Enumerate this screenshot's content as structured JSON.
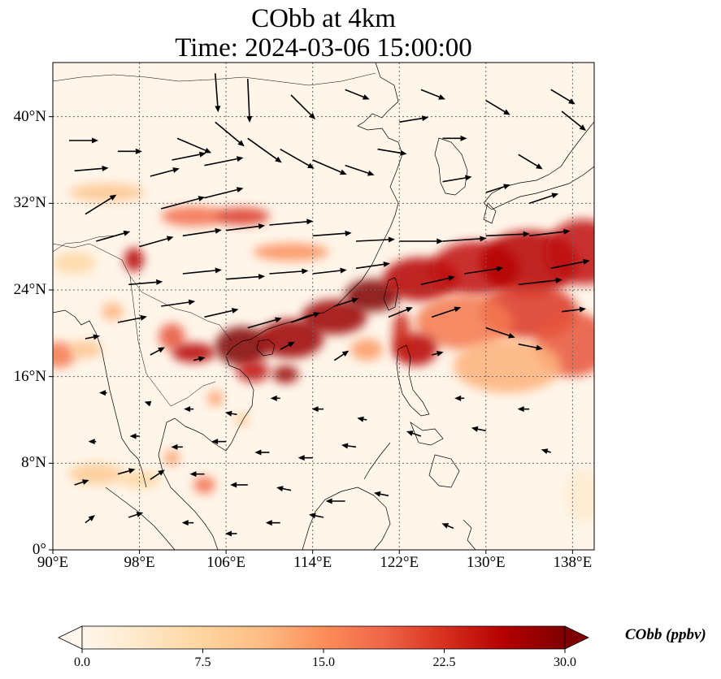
{
  "title": {
    "line1": "CObb at 4km",
    "line2": "Time: 2024-03-06 15:00:00"
  },
  "map": {
    "lon_range": [
      90,
      140
    ],
    "lat_range": [
      0,
      45
    ],
    "lat_ticks": [
      {
        "value": 40,
        "label": "40°N"
      },
      {
        "value": 32,
        "label": "32°N"
      },
      {
        "value": 24,
        "label": "24°N"
      },
      {
        "value": 16,
        "label": "16°N"
      },
      {
        "value": 8,
        "label": "8°N"
      },
      {
        "value": 0,
        "label": "0°"
      }
    ],
    "lon_ticks": [
      {
        "value": 90,
        "label": "90°E"
      },
      {
        "value": 98,
        "label": "98°E"
      },
      {
        "value": 106,
        "label": "106°E"
      },
      {
        "value": 114,
        "label": "114°E"
      },
      {
        "value": 122,
        "label": "122°E"
      },
      {
        "value": 130,
        "label": "130°E"
      },
      {
        "value": 138,
        "label": "138°E"
      }
    ],
    "gridlines": true,
    "field": "CObb",
    "plumes": [
      {
        "lon": 95,
        "lat": 33.0,
        "dlon": 3.5,
        "dlat": 0.8,
        "value": 10
      },
      {
        "lon": 103,
        "lat": 30.8,
        "dlon": 3.0,
        "dlat": 0.9,
        "value": 18
      },
      {
        "lon": 107.5,
        "lat": 30.8,
        "dlon": 2.5,
        "dlat": 0.8,
        "value": 22
      },
      {
        "lon": 112,
        "lat": 27.5,
        "dlon": 3.5,
        "dlat": 0.8,
        "value": 15
      },
      {
        "lon": 97.5,
        "lat": 26.8,
        "dlon": 0.9,
        "dlat": 1.1,
        "value": 26
      },
      {
        "lon": 92,
        "lat": 26.5,
        "dlon": 2.0,
        "dlat": 1.0,
        "value": 7
      },
      {
        "lon": 90.5,
        "lat": 18.0,
        "dlon": 1.6,
        "dlat": 1.2,
        "value": 17
      },
      {
        "lon": 93,
        "lat": 18.5,
        "dlon": 1.5,
        "dlat": 0.8,
        "value": 10
      },
      {
        "lon": 95.5,
        "lat": 22.0,
        "dlon": 1.0,
        "dlat": 0.8,
        "value": 12
      },
      {
        "lon": 101,
        "lat": 19.7,
        "dlon": 1.2,
        "dlat": 1.2,
        "value": 20
      },
      {
        "lon": 103,
        "lat": 18.2,
        "dlon": 2.0,
        "dlat": 0.9,
        "value": 26
      },
      {
        "lon": 107.5,
        "lat": 18.8,
        "dlon": 2.5,
        "dlat": 1.8,
        "value": 30
      },
      {
        "lon": 112,
        "lat": 19.5,
        "dlon": 3.0,
        "dlat": 1.8,
        "value": 28
      },
      {
        "lon": 116,
        "lat": 21.5,
        "dlon": 3.0,
        "dlat": 1.6,
        "value": 28
      },
      {
        "lon": 119.5,
        "lat": 23.5,
        "dlon": 2.5,
        "dlat": 1.5,
        "value": 30
      },
      {
        "lon": 124,
        "lat": 25.0,
        "dlon": 3.5,
        "dlat": 2.0,
        "value": 26
      },
      {
        "lon": 129,
        "lat": 26.0,
        "dlon": 4.0,
        "dlat": 2.5,
        "value": 25
      },
      {
        "lon": 134,
        "lat": 26.5,
        "dlon": 4.5,
        "dlat": 3.0,
        "value": 26
      },
      {
        "lon": 139,
        "lat": 27.5,
        "dlon": 3.5,
        "dlat": 3.0,
        "value": 25
      },
      {
        "lon": 134,
        "lat": 22.0,
        "dlon": 4.5,
        "dlat": 2.5,
        "value": 22
      },
      {
        "lon": 128,
        "lat": 21.0,
        "dlon": 4.5,
        "dlat": 2.5,
        "value": 17
      },
      {
        "lon": 138,
        "lat": 19.0,
        "dlon": 3.5,
        "dlat": 3.0,
        "value": 20
      },
      {
        "lon": 132,
        "lat": 17.0,
        "dlon": 5.0,
        "dlat": 2.5,
        "value": 12
      },
      {
        "lon": 123.5,
        "lat": 18.5,
        "dlon": 2.0,
        "dlat": 1.5,
        "value": 26
      },
      {
        "lon": 122.2,
        "lat": 20.0,
        "dlon": 0.8,
        "dlat": 2.0,
        "value": 24
      },
      {
        "lon": 108.5,
        "lat": 16.5,
        "dlon": 1.5,
        "dlat": 1.0,
        "value": 25
      },
      {
        "lon": 111.5,
        "lat": 16.2,
        "dlon": 1.2,
        "dlat": 0.8,
        "value": 28
      },
      {
        "lon": 119,
        "lat": 18.5,
        "dlon": 1.5,
        "dlat": 1.0,
        "value": 14
      },
      {
        "lon": 105,
        "lat": 14.0,
        "dlon": 0.7,
        "dlat": 0.7,
        "value": 14
      },
      {
        "lon": 107.5,
        "lat": 12.0,
        "dlon": 0.6,
        "dlat": 0.6,
        "value": 10
      },
      {
        "lon": 104,
        "lat": 6.0,
        "dlon": 1.0,
        "dlat": 0.8,
        "value": 18
      },
      {
        "lon": 101,
        "lat": 8.5,
        "dlon": 0.7,
        "dlat": 0.7,
        "value": 14
      },
      {
        "lon": 94,
        "lat": 7.0,
        "dlon": 2.5,
        "dlat": 1.0,
        "value": 9
      },
      {
        "lon": 98,
        "lat": 6.5,
        "dlon": 2.0,
        "dlat": 0.8,
        "value": 7
      },
      {
        "lon": 139,
        "lat": 5.0,
        "dlon": 1.6,
        "dlat": 2.5,
        "value": 3
      }
    ],
    "winds": [
      {
        "lon": 91.5,
        "lat": 37.8,
        "u": 3.0,
        "v": 0.0
      },
      {
        "lon": 92,
        "lat": 35.0,
        "u": 3.5,
        "v": 0.3
      },
      {
        "lon": 93,
        "lat": 31.0,
        "u": 3.2,
        "v": 2.0
      },
      {
        "lon": 94,
        "lat": 28.5,
        "u": 3.5,
        "v": 1.0
      },
      {
        "lon": 96,
        "lat": 36.8,
        "u": 2.5,
        "v": 0.0
      },
      {
        "lon": 99,
        "lat": 34.5,
        "u": 3.0,
        "v": 0.8
      },
      {
        "lon": 101,
        "lat": 36.0,
        "u": 3.5,
        "v": 0.7
      },
      {
        "lon": 104,
        "lat": 35.5,
        "u": 4.0,
        "v": 0.8
      },
      {
        "lon": 100,
        "lat": 31.5,
        "u": 4.5,
        "v": 1.2
      },
      {
        "lon": 104,
        "lat": 32.5,
        "u": 4.0,
        "v": 1.0
      },
      {
        "lon": 98,
        "lat": 28.0,
        "u": 3.5,
        "v": 1.0
      },
      {
        "lon": 102,
        "lat": 29.0,
        "u": 4.0,
        "v": 0.6
      },
      {
        "lon": 106,
        "lat": 29.5,
        "u": 4.0,
        "v": 0.5
      },
      {
        "lon": 110,
        "lat": 30.0,
        "u": 4.5,
        "v": 0.4
      },
      {
        "lon": 114,
        "lat": 29.0,
        "u": 4.0,
        "v": 0.3
      },
      {
        "lon": 118,
        "lat": 28.5,
        "u": 4.0,
        "v": 0.2
      },
      {
        "lon": 122,
        "lat": 28.5,
        "u": 4.5,
        "v": 0.0
      },
      {
        "lon": 126,
        "lat": 28.5,
        "u": 4.5,
        "v": 0.3
      },
      {
        "lon": 130,
        "lat": 29.0,
        "u": 4.5,
        "v": 0.2
      },
      {
        "lon": 134,
        "lat": 29.0,
        "u": 4.2,
        "v": 0.5
      },
      {
        "lon": 101.5,
        "lat": 38.0,
        "u": 3.5,
        "v": -1.5
      },
      {
        "lon": 105,
        "lat": 39.5,
        "u": 3.0,
        "v": -2.5
      },
      {
        "lon": 108,
        "lat": 38.0,
        "u": 3.5,
        "v": -2.5
      },
      {
        "lon": 111,
        "lat": 37.0,
        "u": 3.5,
        "v": -2.0
      },
      {
        "lon": 114,
        "lat": 36.0,
        "u": 3.5,
        "v": -1.5
      },
      {
        "lon": 117,
        "lat": 35.5,
        "u": 3.0,
        "v": -1.0
      },
      {
        "lon": 120,
        "lat": 37.0,
        "u": 3.0,
        "v": -0.5
      },
      {
        "lon": 122,
        "lat": 39.5,
        "u": 3.0,
        "v": 0.5
      },
      {
        "lon": 126,
        "lat": 38.0,
        "u": 2.5,
        "v": 0.0
      },
      {
        "lon": 126,
        "lat": 34.0,
        "u": 3.0,
        "v": 0.5
      },
      {
        "lon": 130,
        "lat": 33.0,
        "u": 2.5,
        "v": 0.8
      },
      {
        "lon": 133,
        "lat": 36.5,
        "u": 2.5,
        "v": -1.5
      },
      {
        "lon": 134,
        "lat": 32.0,
        "u": 3.0,
        "v": 1.0
      },
      {
        "lon": 137,
        "lat": 40.5,
        "u": 2.5,
        "v": -2.0
      },
      {
        "lon": 136,
        "lat": 42.5,
        "u": 2.5,
        "v": -1.5
      },
      {
        "lon": 105,
        "lat": 44.0,
        "u": 0.3,
        "v": -4.0
      },
      {
        "lon": 108,
        "lat": 43.5,
        "u": 0.2,
        "v": -4.5
      },
      {
        "lon": 112,
        "lat": 42.0,
        "u": 2.5,
        "v": -2.5
      },
      {
        "lon": 117,
        "lat": 42.5,
        "u": 2.5,
        "v": -1.0
      },
      {
        "lon": 124,
        "lat": 42.5,
        "u": 2.5,
        "v": -1.0
      },
      {
        "lon": 130,
        "lat": 41.5,
        "u": 2.5,
        "v": -1.5
      },
      {
        "lon": 97,
        "lat": 24.5,
        "u": 3.5,
        "v": 0.3
      },
      {
        "lon": 102,
        "lat": 25.5,
        "u": 4.0,
        "v": 0.4
      },
      {
        "lon": 106,
        "lat": 25.0,
        "u": 4.0,
        "v": 0.3
      },
      {
        "lon": 110,
        "lat": 25.5,
        "u": 4.0,
        "v": 0.3
      },
      {
        "lon": 114,
        "lat": 25.5,
        "u": 3.5,
        "v": 0.4
      },
      {
        "lon": 118,
        "lat": 26.0,
        "u": 3.5,
        "v": 0.5
      },
      {
        "lon": 124,
        "lat": 24.5,
        "u": 3.5,
        "v": 0.8
      },
      {
        "lon": 128,
        "lat": 25.5,
        "u": 4.0,
        "v": 0.6
      },
      {
        "lon": 133,
        "lat": 24.5,
        "u": 4.5,
        "v": 0.5
      },
      {
        "lon": 136,
        "lat": 26.0,
        "u": 4.0,
        "v": 0.8
      },
      {
        "lon": 96,
        "lat": 21.0,
        "u": 3.0,
        "v": 0.6
      },
      {
        "lon": 100,
        "lat": 22.5,
        "u": 3.5,
        "v": 0.5
      },
      {
        "lon": 104,
        "lat": 21.5,
        "u": 3.5,
        "v": 0.8
      },
      {
        "lon": 108,
        "lat": 20.5,
        "u": 3.5,
        "v": 1.0
      },
      {
        "lon": 112,
        "lat": 21.0,
        "u": 3.0,
        "v": 1.0
      },
      {
        "lon": 116,
        "lat": 22.5,
        "u": 2.5,
        "v": 0.8
      },
      {
        "lon": 121,
        "lat": 21.5,
        "u": 2.5,
        "v": 1.0
      },
      {
        "lon": 125,
        "lat": 21.5,
        "u": 3.0,
        "v": 1.0
      },
      {
        "lon": 130,
        "lat": 20.5,
        "u": 3.0,
        "v": -1.0
      },
      {
        "lon": 133,
        "lat": 19.0,
        "u": 2.5,
        "v": -0.5
      },
      {
        "lon": 137,
        "lat": 22.0,
        "u": 2.5,
        "v": 0.3
      },
      {
        "lon": 93,
        "lat": 19.5,
        "u": 1.5,
        "v": 0.3
      },
      {
        "lon": 99,
        "lat": 18.0,
        "u": 1.5,
        "v": 0.8
      },
      {
        "lon": 103,
        "lat": 17.5,
        "u": 1.2,
        "v": 0.3
      },
      {
        "lon": 111,
        "lat": 18.5,
        "u": 1.5,
        "v": 0.8
      },
      {
        "lon": 116,
        "lat": 17.5,
        "u": 1.5,
        "v": 1.0
      },
      {
        "lon": 125,
        "lat": 18.0,
        "u": 1.2,
        "v": 0.3
      },
      {
        "lon": 95,
        "lat": 14.5,
        "u": -0.8,
        "v": 0.0
      },
      {
        "lon": 99,
        "lat": 13.5,
        "u": -0.6,
        "v": 0.2
      },
      {
        "lon": 103,
        "lat": 13.0,
        "u": -1.0,
        "v": 0.0
      },
      {
        "lon": 107,
        "lat": 12.5,
        "u": -1.2,
        "v": 0.2
      },
      {
        "lon": 111,
        "lat": 14.0,
        "u": -1.0,
        "v": 0.0
      },
      {
        "lon": 115,
        "lat": 13.0,
        "u": -1.2,
        "v": 0.0
      },
      {
        "lon": 119,
        "lat": 12.0,
        "u": -1.0,
        "v": 0.2
      },
      {
        "lon": 94,
        "lat": 10.0,
        "u": -0.8,
        "v": 0.0
      },
      {
        "lon": 98,
        "lat": 10.5,
        "u": -1.0,
        "v": 0.0
      },
      {
        "lon": 102,
        "lat": 9.5,
        "u": -1.2,
        "v": 0.0
      },
      {
        "lon": 106,
        "lat": 10.0,
        "u": -1.5,
        "v": 0.0
      },
      {
        "lon": 110,
        "lat": 9.0,
        "u": -1.5,
        "v": 0.0
      },
      {
        "lon": 114,
        "lat": 8.5,
        "u": -1.5,
        "v": 0.0
      },
      {
        "lon": 118,
        "lat": 9.5,
        "u": -1.5,
        "v": 0.2
      },
      {
        "lon": 124,
        "lat": 10.5,
        "u": -1.5,
        "v": 0.5
      },
      {
        "lon": 92,
        "lat": 6.0,
        "u": 1.5,
        "v": 0.5
      },
      {
        "lon": 96,
        "lat": 7.0,
        "u": 1.8,
        "v": 0.5
      },
      {
        "lon": 99,
        "lat": 6.5,
        "u": 1.5,
        "v": 1.0
      },
      {
        "lon": 104,
        "lat": 7.0,
        "u": -1.5,
        "v": 0.0
      },
      {
        "lon": 108,
        "lat": 6.0,
        "u": -1.8,
        "v": 0.0
      },
      {
        "lon": 112,
        "lat": 5.5,
        "u": -1.5,
        "v": 0.3
      },
      {
        "lon": 117,
        "lat": 4.5,
        "u": -2.0,
        "v": 0.0
      },
      {
        "lon": 121,
        "lat": 5.0,
        "u": -1.5,
        "v": 0.3
      },
      {
        "lon": 93,
        "lat": 2.5,
        "u": 1.0,
        "v": 0.8
      },
      {
        "lon": 97,
        "lat": 3.0,
        "u": 1.5,
        "v": 0.5
      },
      {
        "lon": 103,
        "lat": 2.5,
        "u": -1.2,
        "v": 0.0
      },
      {
        "lon": 107,
        "lat": 1.5,
        "u": -1.2,
        "v": 0.0
      },
      {
        "lon": 111,
        "lat": 2.5,
        "u": -1.5,
        "v": 0.0
      },
      {
        "lon": 115,
        "lat": 3.0,
        "u": -1.5,
        "v": 0.3
      },
      {
        "lon": 127,
        "lat": 2.0,
        "u": -1.2,
        "v": 0.5
      },
      {
        "lon": 130,
        "lat": 11.0,
        "u": -1.5,
        "v": 0.3
      },
      {
        "lon": 134,
        "lat": 13.0,
        "u": -1.2,
        "v": 0.0
      },
      {
        "lon": 128,
        "lat": 14.0,
        "u": -1.0,
        "v": 0.0
      },
      {
        "lon": 136,
        "lat": 9.0,
        "u": -1.0,
        "v": 0.3
      }
    ],
    "colors": {
      "gridline": "#666666",
      "coastline": "#000000",
      "arrow": "#000000"
    }
  },
  "colorbar": {
    "label": "CObb (ppbv)",
    "min": 0.0,
    "max": 30.0,
    "ticks": [
      "0.0",
      "7.5",
      "15.0",
      "22.5",
      "30.0"
    ],
    "extend": "both",
    "colors": [
      "#fff7ec",
      "#fee8c8",
      "#fdd49e",
      "#fdbb84",
      "#fc8d59",
      "#ef6548",
      "#d7301f",
      "#b30000",
      "#7f0000"
    ]
  }
}
